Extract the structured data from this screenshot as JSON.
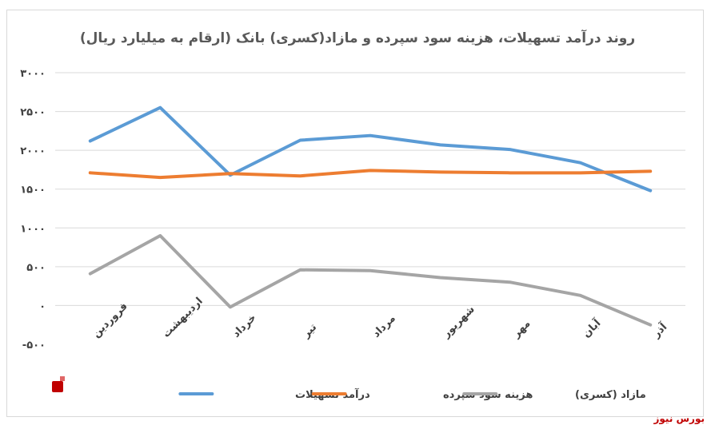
{
  "chart_data": {
    "type": "line",
    "title": "روند درآمد تسهیلات، هزینه سود سپرده و مازاد(کسری) بانک (ارقام به میلیارد ریال)",
    "categories": [
      "فروردین",
      "اردیبهشت",
      "خرداد",
      "تیر",
      "مرداد",
      "شهریور",
      "مهر",
      "آبان",
      "آذر"
    ],
    "y_ticks": [
      -500,
      0,
      500,
      1000,
      1500,
      2000,
      2500,
      3000
    ],
    "y_tick_labels": [
      "-۵۰۰",
      "۰",
      "۵۰۰",
      "۱۰۰۰",
      "۱۵۰۰",
      "۲۰۰۰",
      "۲۵۰۰",
      "۳۰۰۰"
    ],
    "ylim": [
      -500,
      3000
    ],
    "grid": true,
    "legend_position": "bottom",
    "series": [
      {
        "name": "درآمد تسهیلات",
        "color": "#5b9bd5",
        "values": [
          2120,
          2550,
          1680,
          2130,
          2190,
          2070,
          2010,
          1840,
          1480
        ]
      },
      {
        "name": "هزینه سود سپرده",
        "color": "#ed7d31",
        "values": [
          1710,
          1650,
          1700,
          1670,
          1740,
          1720,
          1710,
          1710,
          1730
        ]
      },
      {
        "name": "مازاد (کسری)",
        "color": "#a5a5a5",
        "values": [
          410,
          900,
          -20,
          460,
          450,
          360,
          300,
          130,
          -250
        ]
      }
    ]
  },
  "footer": {
    "brand": "بورس نیوز"
  },
  "logo": {
    "text": "بورس نیوز",
    "color": "#c00000"
  }
}
